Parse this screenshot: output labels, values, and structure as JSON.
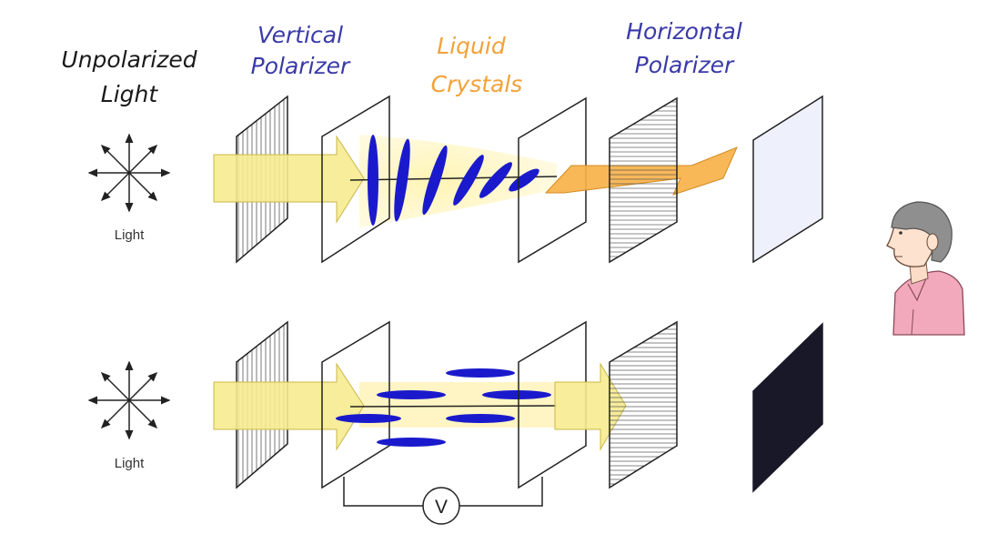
{
  "labels": {
    "unpolarized_line1": "Unpolarized",
    "unpolarized_line2": "Light",
    "vertical_line1": "Vertical",
    "vertical_line2": "Polarizer",
    "liquid_line1": "Liquid",
    "liquid_line2": "Crystals",
    "horizontal_line1": "Horizontal",
    "horizontal_line2": "Polarizer",
    "light_top": "Light",
    "light_bottom": "Light",
    "voltmeter": "V"
  },
  "colors": {
    "label_dark": "#1a1a1a",
    "label_blue": "#3a3aa8",
    "label_orange": "#f2a23a",
    "arrow_yellow": "#f6eb8f",
    "arrow_orange": "#f7b24a",
    "crystal_blue": "#1a1acc",
    "screen_light": "#eef0fb",
    "screen_dark": "#191828",
    "shirt_pink": "#f1a9bb",
    "hair_gray": "#8f8f8f"
  },
  "icons": {
    "light_rays": "starburst-arrows-icon",
    "viewer": "person-viewer-icon"
  },
  "state": {
    "top_row": "voltage off - light passes, screen bright",
    "bottom_row": "voltage on - light blocked, screen dark"
  }
}
